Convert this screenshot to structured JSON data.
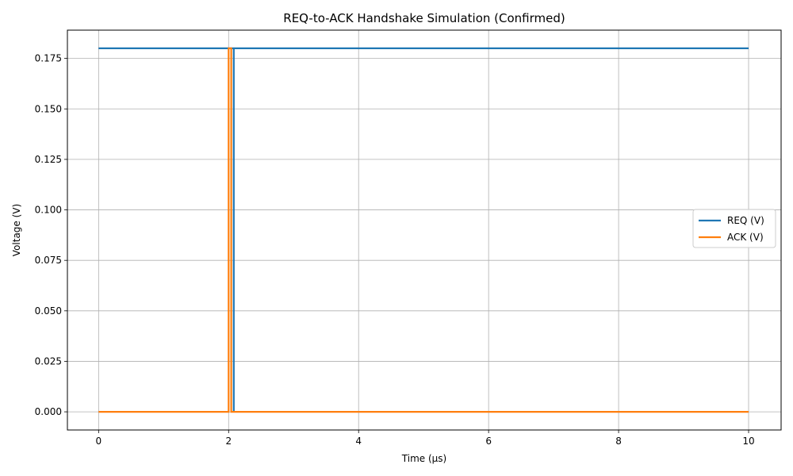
{
  "chart_data": {
    "type": "line",
    "title": "REQ-to-ACK Handshake Simulation (Confirmed)",
    "xlabel": "Time (µs)",
    "ylabel": "Voltage (V)",
    "xlim": [
      -0.48,
      10.5
    ],
    "ylim": [
      -0.009,
      0.189
    ],
    "xticks": [
      0,
      2,
      4,
      6,
      8,
      10
    ],
    "xtick_labels": [
      "0",
      "2",
      "4",
      "6",
      "8",
      "10"
    ],
    "yticks": [
      0.0,
      0.025,
      0.05,
      0.075,
      0.1,
      0.125,
      0.15,
      0.175
    ],
    "ytick_labels": [
      "0.000",
      "0.025",
      "0.050",
      "0.075",
      "0.100",
      "0.125",
      "0.150",
      "0.175"
    ],
    "grid": true,
    "legend_position": "center-right",
    "series": [
      {
        "name": "REQ (V)",
        "color": "#1f77b4",
        "x": [
          0,
          2.08,
          2.08,
          2.08,
          2.08,
          10
        ],
        "y": [
          0.18,
          0.18,
          0.0,
          0.0,
          0.18,
          0.18
        ]
      },
      {
        "name": "ACK (V)",
        "color": "#ff7f0e",
        "x": [
          0,
          2.0,
          2.0,
          2.04,
          2.04,
          10
        ],
        "y": [
          0.0,
          0.0,
          0.18,
          0.18,
          0.0,
          0.0
        ]
      }
    ]
  }
}
